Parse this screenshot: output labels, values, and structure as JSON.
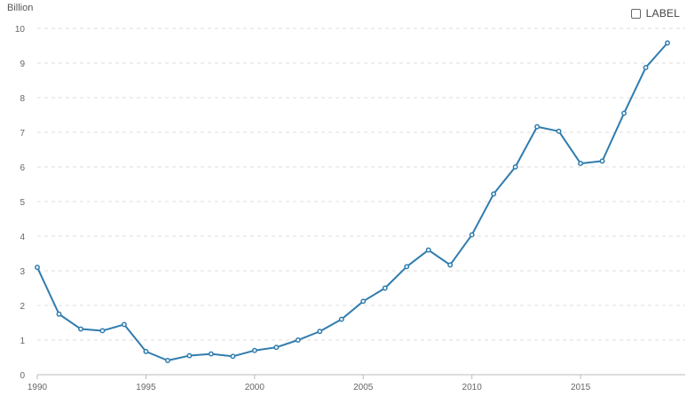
{
  "toggle": {
    "label": "LABEL"
  },
  "chart_data": {
    "type": "line",
    "title": "",
    "xlabel": "",
    "ylabel": "Billion",
    "x": [
      1990,
      1991,
      1992,
      1993,
      1994,
      1995,
      1996,
      1997,
      1998,
      1999,
      2000,
      2001,
      2002,
      2003,
      2004,
      2005,
      2006,
      2007,
      2008,
      2009,
      2010,
      2011,
      2012,
      2013,
      2014,
      2015,
      2016,
      2017,
      2018,
      2019
    ],
    "series": [
      {
        "values": [
          3.1,
          1.75,
          1.32,
          1.27,
          1.45,
          0.67,
          0.41,
          0.55,
          0.6,
          0.53,
          0.7,
          0.79,
          1.0,
          1.25,
          1.6,
          2.12,
          2.5,
          3.12,
          3.6,
          3.17,
          4.04,
          5.22,
          6.0,
          7.16,
          7.03,
          6.1,
          6.17,
          7.55,
          8.87,
          9.58
        ],
        "color": "#2f7cae"
      }
    ],
    "xlim": [
      1990,
      2019
    ],
    "ylim": [
      0,
      10
    ],
    "x_ticks": [
      "1990",
      "1995",
      "2000",
      "2005",
      "2010",
      "2015"
    ],
    "y_ticks": [
      "0",
      "1",
      "2",
      "3",
      "4",
      "5",
      "6",
      "7",
      "8",
      "9",
      "10"
    ],
    "grid": true,
    "legend": "none"
  }
}
